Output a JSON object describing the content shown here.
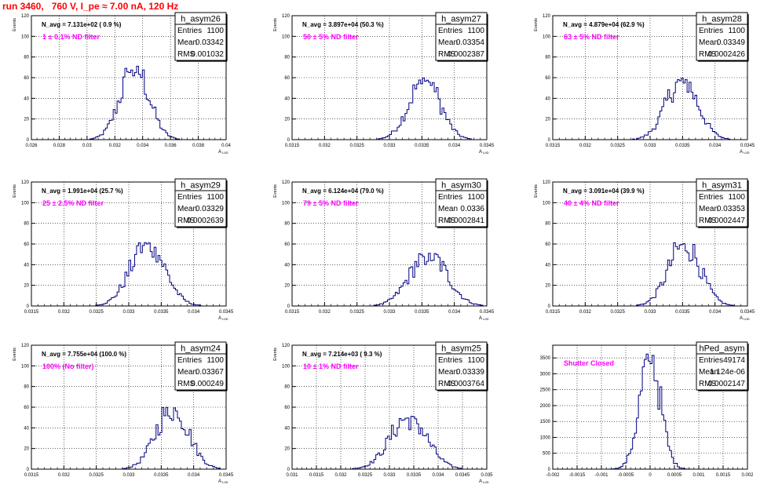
{
  "page_title": "run 3460,   760 V, I_pe ≈ 7.00 nA, 120 Hz",
  "colors": {
    "title": "#ff0000",
    "note": "#ff00ff",
    "histogram": "#000080",
    "frame": "#000000"
  },
  "chart_data": [
    {
      "type": "bar",
      "name": "h_asym26",
      "ylabel": "Events",
      "xlabel": "A",
      "xticks": [
        0.026,
        0.028,
        0.03,
        0.032,
        0.034,
        0.036,
        0.038,
        0.04
      ],
      "xtick_labels": [
        "0.026",
        "0.028",
        "0.03",
        "0.032",
        "0.034",
        "0.036",
        "0.038",
        "0.04"
      ],
      "xlim": [
        0.026,
        0.04
      ],
      "yticks": [
        0,
        20,
        40,
        60,
        80,
        100,
        120
      ],
      "ylim": [
        0,
        120
      ],
      "navg": "N_avg = 7.131e+02 ( 0.9 %)",
      "note": "1 ± 0.1% ND filter",
      "stats": {
        "entries": "1100",
        "mean": "0.03342",
        "rms": "0.001032"
      },
      "center": 0.03342,
      "width": 0.001032,
      "peak": 72
    },
    {
      "type": "bar",
      "name": "h_asym27",
      "ylabel": "Events",
      "xlabel": "A",
      "xticks": [
        0.0315,
        0.032,
        0.0325,
        0.033,
        0.0335,
        0.034,
        0.0345
      ],
      "xtick_labels": [
        "0.0315",
        "0.032",
        "0.0325",
        "0.033",
        "0.0335",
        "0.034",
        "0.0345"
      ],
      "xlim": [
        0.0315,
        0.0345
      ],
      "yticks": [
        0,
        20,
        40,
        60,
        80,
        100,
        120
      ],
      "ylim": [
        0,
        120
      ],
      "navg": "N_avg = 3.897e+04 (50.3 %)",
      "note": "50 ± 5% ND filter",
      "stats": {
        "entries": "1100",
        "mean": "0.03354",
        "rms": "0.0002387"
      },
      "center": 0.03354,
      "width": 0.0002387,
      "peak": 60
    },
    {
      "type": "bar",
      "name": "h_asym28",
      "ylabel": "Events",
      "xlabel": "A",
      "xticks": [
        0.0315,
        0.032,
        0.0325,
        0.033,
        0.0335,
        0.034,
        0.0345
      ],
      "xtick_labels": [
        "0.0315",
        "0.032",
        "0.0325",
        "0.033",
        "0.0335",
        "0.034",
        "0.0345"
      ],
      "xlim": [
        0.0315,
        0.0345
      ],
      "yticks": [
        0,
        20,
        40,
        60,
        80,
        100,
        120
      ],
      "ylim": [
        0,
        120
      ],
      "navg": "N_avg = 4.879e+04 (62.9 %)",
      "note": "63 ± 5% ND filter",
      "stats": {
        "entries": "1100",
        "mean": "0.03349",
        "rms": "0.0002426"
      },
      "center": 0.03349,
      "width": 0.0002426,
      "peak": 60
    },
    {
      "type": "bar",
      "name": "h_asym29",
      "ylabel": "Events",
      "xlabel": "A",
      "xticks": [
        0.0315,
        0.032,
        0.0325,
        0.033,
        0.0335,
        0.034,
        0.0345
      ],
      "xtick_labels": [
        "0.0315",
        "0.032",
        "0.0325",
        "0.033",
        "0.0335",
        "0.034",
        "0.0345"
      ],
      "xlim": [
        0.0315,
        0.0345
      ],
      "yticks": [
        0,
        20,
        40,
        60,
        80,
        100,
        120
      ],
      "ylim": [
        0,
        120
      ],
      "navg": "N_avg = 1.991e+04 (25.7 %)",
      "note": "25 ± 2.5% ND filter",
      "stats": {
        "entries": "1100",
        "mean": "0.03329",
        "rms": "0.0002639"
      },
      "center": 0.03329,
      "width": 0.0002639,
      "peak": 63
    },
    {
      "type": "bar",
      "name": "h_asym30",
      "ylabel": "Events",
      "xlabel": "A",
      "xticks": [
        0.0315,
        0.032,
        0.0325,
        0.033,
        0.0335,
        0.034,
        0.0345
      ],
      "xtick_labels": [
        "0.0315",
        "0.032",
        "0.0325",
        "0.033",
        "0.0335",
        "0.034",
        "0.0345"
      ],
      "xlim": [
        0.0315,
        0.0345
      ],
      "yticks": [
        0,
        20,
        40,
        60,
        80,
        100,
        120
      ],
      "ylim": [
        0,
        120
      ],
      "navg": "N_avg = 6.124e+04 (79.0 %)",
      "note": "79 ± 5% ND filter",
      "stats": {
        "entries": "1100",
        "mean": "0.0336",
        "rms": "0.0002841"
      },
      "center": 0.0336,
      "width": 0.0002841,
      "peak": 52
    },
    {
      "type": "bar",
      "name": "h_asym31",
      "ylabel": "Events",
      "xlabel": "A",
      "xticks": [
        0.0315,
        0.032,
        0.0325,
        0.033,
        0.0335,
        0.034,
        0.0345
      ],
      "xtick_labels": [
        "0.0315",
        "0.032",
        "0.0325",
        "0.033",
        "0.0335",
        "0.034",
        "0.0345"
      ],
      "xlim": [
        0.0315,
        0.0345
      ],
      "yticks": [
        0,
        20,
        40,
        60,
        80,
        100,
        120
      ],
      "ylim": [
        0,
        120
      ],
      "navg": "N_avg = 3.091e+04 (39.9 %)",
      "note": "40 ± 4% ND filter",
      "stats": {
        "entries": "1100",
        "mean": "0.03353",
        "rms": "0.0002447"
      },
      "center": 0.03353,
      "width": 0.0002447,
      "peak": 62
    },
    {
      "type": "bar",
      "name": "h_asym24",
      "ylabel": "Events",
      "xlabel": "A",
      "xticks": [
        0.0315,
        0.032,
        0.0325,
        0.033,
        0.0335,
        0.034,
        0.0345
      ],
      "xtick_labels": [
        "0.0315",
        "0.032",
        "0.0325",
        "0.033",
        "0.0335",
        "0.034",
        "0.0345"
      ],
      "xlim": [
        0.0315,
        0.0345
      ],
      "yticks": [
        0,
        20,
        40,
        60,
        80,
        100,
        120
      ],
      "ylim": [
        0,
        120
      ],
      "navg": "N_avg = 7.755e+04 (100.0 %)",
      "note": "100% (No filter)",
      "stats": {
        "entries": "1100",
        "mean": "0.03367",
        "rms": "0.000249"
      },
      "center": 0.03367,
      "width": 0.000249,
      "peak": 62
    },
    {
      "type": "bar",
      "name": "h_asym25",
      "ylabel": "Events",
      "xlabel": "A",
      "xticks": [
        0.031,
        0.0315,
        0.032,
        0.0325,
        0.033,
        0.0335,
        0.034,
        0.0345,
        0.035
      ],
      "xtick_labels": [
        "0.031",
        "0.0315",
        "0.032",
        "0.0325",
        "0.033",
        "0.0335",
        "0.034",
        "0.0345",
        "0.035"
      ],
      "xlim": [
        0.031,
        0.035
      ],
      "yticks": [
        0,
        20,
        40,
        60,
        80,
        100,
        120
      ],
      "ylim": [
        0,
        120
      ],
      "navg": "N_avg = 7.214e+03 ( 9.3 %)",
      "note": "10 ± 1% ND filter",
      "stats": {
        "entries": "1100",
        "mean": "0.03339",
        "rms": "0.0003764"
      },
      "center": 0.03339,
      "width": 0.0003764,
      "peak": 52
    },
    {
      "type": "bar",
      "name": "hPed_asym",
      "ylabel": "",
      "xlabel": "",
      "xticks": [
        -0.002,
        -0.0015,
        -0.001,
        -0.0005,
        0,
        0.0005,
        0.001,
        0.0015,
        0.002
      ],
      "xtick_labels": [
        "-0.002",
        "-0.0015",
        "-0.001",
        "-0.0005",
        "0",
        "0.0005",
        "0.001",
        "0.0015",
        "0.002"
      ],
      "xlim": [
        -0.002,
        0.002
      ],
      "yticks": [
        0,
        500,
        1000,
        1500,
        2000,
        2500,
        3000,
        3500
      ],
      "ylim": [
        0,
        3900
      ],
      "navg": "",
      "note": "Shutter Closed",
      "stats": {
        "entries": "49174",
        "mean": "1.124e-06",
        "rms": "0.0002147"
      },
      "center": 0.0,
      "width": 0.0002147,
      "peak": 3650
    }
  ]
}
